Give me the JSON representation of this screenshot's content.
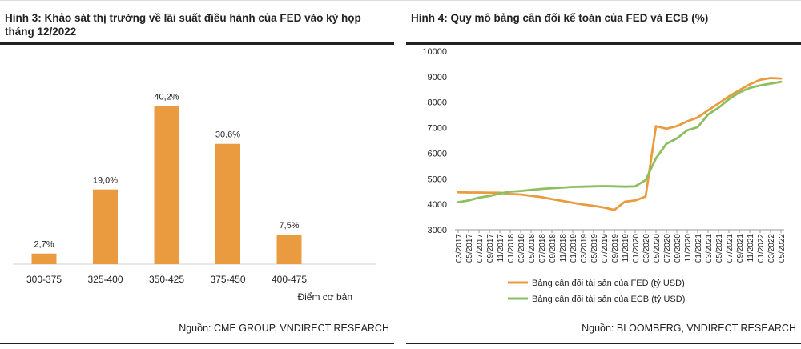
{
  "left": {
    "title": "Hình 3: Khảo sát thị trường về lãi suất điều hành của FED vào kỳ họp tháng 12/2022",
    "source": "Nguồn: CME GROUP, VNDIRECT RESEARCH"
  },
  "right": {
    "title": "Hình 4: Quy mô bảng cân đối kế toán của FED và ECB (%)",
    "source": "Nguồn: BLOOMBERG, VNDIRECT RESEARCH"
  },
  "chart_data": [
    {
      "type": "bar",
      "categories": [
        "300-375",
        "325-400",
        "350-425",
        "375-450",
        "400-475"
      ],
      "values": [
        2.7,
        19.0,
        40.2,
        30.6,
        7.5
      ],
      "data_labels": [
        "2,7%",
        "19,0%",
        "40,2%",
        "30,6%",
        "7,5%"
      ],
      "xlabel": "Điểm cơ bản",
      "ylabel": "",
      "ylim": [
        0,
        45
      ],
      "grid": false,
      "colors": {
        "bar": "#eb9b3f"
      }
    },
    {
      "type": "line",
      "x": [
        "03/2017",
        "05/2017",
        "07/2017",
        "09/2017",
        "11/2017",
        "01/2018",
        "03/2018",
        "05/2018",
        "07/2018",
        "09/2018",
        "11/2018",
        "01/2019",
        "03/2019",
        "05/2019",
        "07/2019",
        "09/2019",
        "11/2019",
        "01/2020",
        "03/2020",
        "05/2020",
        "07/2020",
        "09/2020",
        "11/2020",
        "01/2021",
        "03/2021",
        "05/2021",
        "07/2021",
        "09/2021",
        "11/2021",
        "01/2022",
        "03/2022",
        "05/2022"
      ],
      "series": [
        {
          "name": "Bảng cân đối tài sản của FED (tỷ USD)",
          "color": "#eb9b3f",
          "values": [
            4470,
            4460,
            4460,
            4450,
            4450,
            4400,
            4380,
            4330,
            4280,
            4200,
            4130,
            4060,
            3990,
            3940,
            3870,
            3780,
            4100,
            4150,
            4300,
            7060,
            6960,
            7060,
            7250,
            7400,
            7680,
            7950,
            8230,
            8470,
            8700,
            8880,
            8950,
            8930
          ]
        },
        {
          "name": "Bảng cân đối tài sản của ECB (tỷ USD)",
          "color": "#8cbf5f",
          "values": [
            4080,
            4150,
            4260,
            4320,
            4420,
            4490,
            4520,
            4560,
            4600,
            4630,
            4650,
            4680,
            4690,
            4700,
            4710,
            4700,
            4690,
            4700,
            4950,
            5800,
            6370,
            6580,
            6900,
            7020,
            7520,
            7780,
            8120,
            8380,
            8560,
            8660,
            8730,
            8800
          ]
        }
      ],
      "ylim": [
        3000,
        10000
      ],
      "yticks": [
        "3000",
        "4000",
        "5000",
        "6000",
        "7000",
        "8000",
        "9000",
        "10000"
      ],
      "grid": false,
      "legend": "bottom-left"
    }
  ]
}
